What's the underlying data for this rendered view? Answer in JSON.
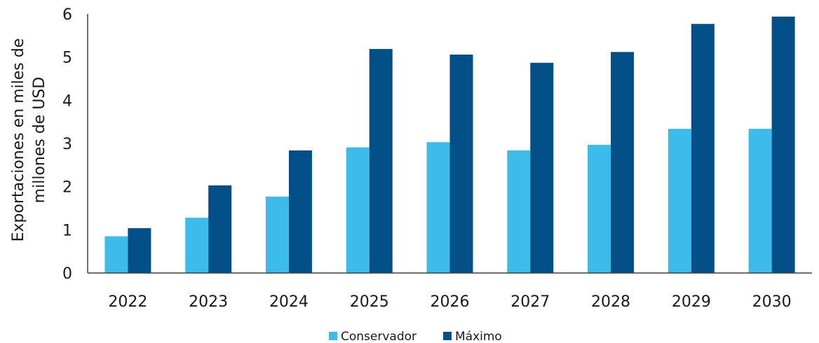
{
  "chart_data": {
    "type": "bar",
    "categories": [
      "2022",
      "2023",
      "2024",
      "2025",
      "2026",
      "2027",
      "2028",
      "2029",
      "2030"
    ],
    "series": [
      {
        "name": "Conservador",
        "color": "#3BBCEB",
        "values": [
          0.85,
          1.28,
          1.77,
          2.91,
          3.03,
          2.84,
          2.97,
          3.34,
          3.34
        ]
      },
      {
        "name": "Máximo",
        "color": "#035089",
        "values": [
          1.04,
          2.03,
          2.84,
          5.19,
          5.06,
          4.87,
          5.12,
          5.77,
          5.94
        ]
      }
    ],
    "title": "",
    "xlabel": "",
    "ylabel_lines": [
      "Exportaciones en miles de",
      "millones de USD"
    ],
    "ylim": [
      0,
      6
    ],
    "yticks": [
      "0",
      "1",
      "2",
      "3",
      "4",
      "5",
      "6"
    ],
    "grid": false,
    "legend_position": "bottom"
  }
}
